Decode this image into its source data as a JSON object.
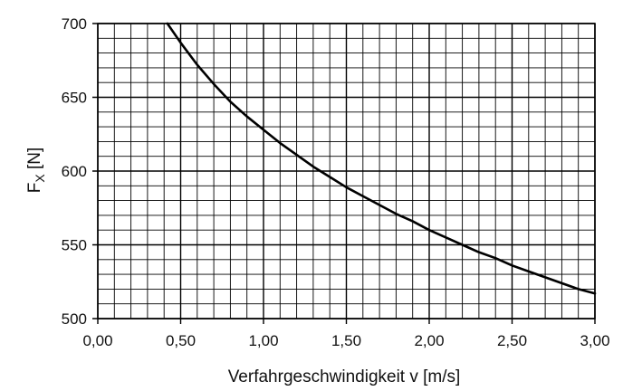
{
  "chart_data": {
    "type": "line",
    "title": "",
    "xlabel": "Verfahrgeschwindigkeit v [m/s]",
    "ylabel": {
      "main": "F",
      "sub": "X",
      "unit": " [N]"
    },
    "xlim": [
      0,
      3
    ],
    "ylim": [
      500,
      700
    ],
    "x_ticks": [
      0,
      0.5,
      1,
      1.5,
      2,
      2.5,
      3
    ],
    "x_tick_labels": [
      "0,00",
      "0,50",
      "1,00",
      "1,50",
      "2,00",
      "2,50",
      "3,00"
    ],
    "y_ticks": [
      500,
      550,
      600,
      650,
      700
    ],
    "y_tick_labels": [
      "500",
      "550",
      "600",
      "650",
      "700"
    ],
    "minor_x_step": 0.1,
    "minor_y_step": 10,
    "grid": true,
    "line_color": "#000000",
    "grid_color": "#000000",
    "series": [
      {
        "x": [
          0.42,
          0.5,
          0.6,
          0.7,
          0.8,
          0.9,
          1.0,
          1.1,
          1.2,
          1.3,
          1.4,
          1.5,
          1.6,
          1.7,
          1.8,
          1.9,
          2.0,
          2.1,
          2.2,
          2.3,
          2.4,
          2.5,
          2.6,
          2.7,
          2.8,
          2.9,
          3.0
        ],
        "y": [
          700,
          687,
          672,
          659,
          647,
          637,
          628,
          619,
          611,
          603,
          596,
          589,
          583,
          577,
          571,
          566,
          560,
          555,
          550,
          545,
          541,
          536,
          532,
          528,
          524,
          520,
          517
        ]
      }
    ]
  }
}
